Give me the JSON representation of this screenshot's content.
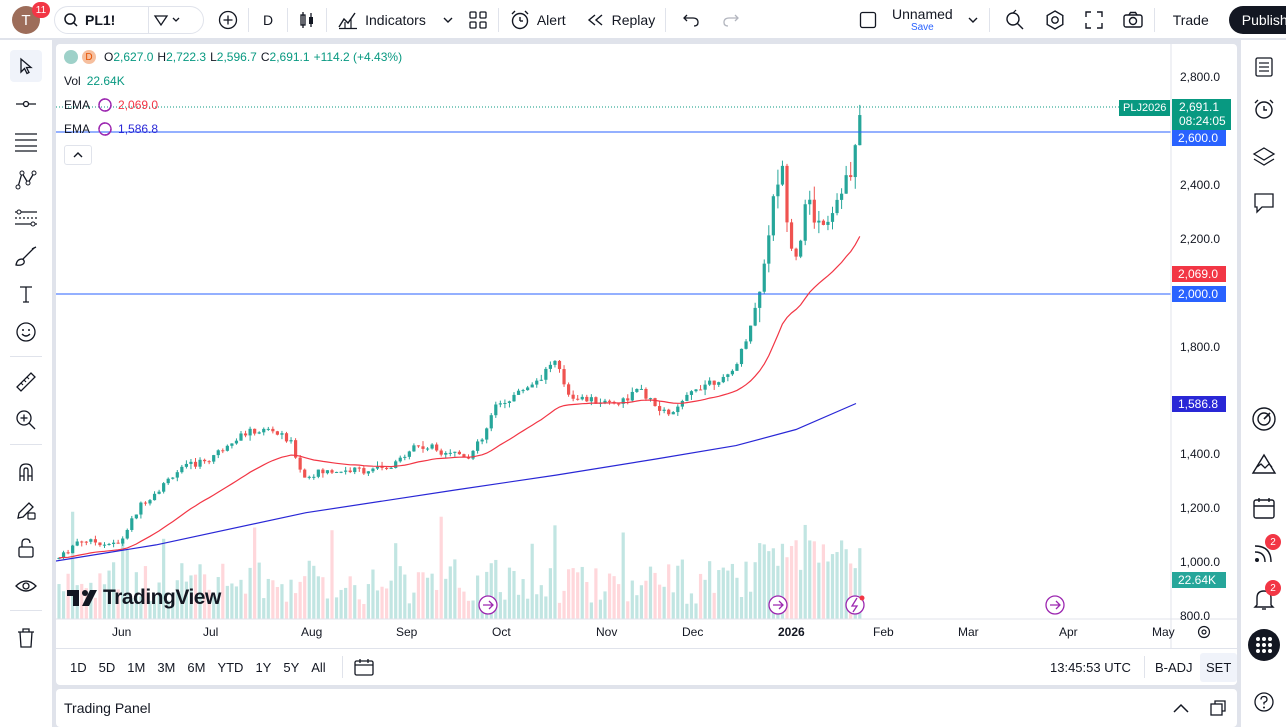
{
  "topbar": {
    "avatar_letter": "T",
    "notifications": "11",
    "symbol": "PL1!",
    "interval": "D",
    "indicators": "Indicators",
    "alert": "Alert",
    "replay": "Replay",
    "layout_name": "Unnamed",
    "layout_save": "Save",
    "trade": "Trade",
    "publish": "Publish"
  },
  "legend": {
    "dot_label": "D",
    "open_label": "O",
    "open": "2,627.0",
    "high_label": "H",
    "high": "2,722.3",
    "low_label": "L",
    "low": "2,596.7",
    "close_label": "C",
    "close": "2,691.1",
    "change": "+114.2 (+4.43%)",
    "vol_label": "Vol",
    "vol": "22.64K",
    "ema1_label": "EMA",
    "ema1": "2,069.0",
    "ema2_label": "EMA",
    "ema2": "1,586.8"
  },
  "price_axis": {
    "ticks": [
      "2,800.0",
      "2,400.0",
      "2,200.0",
      "1,800.0",
      "1,400.0",
      "1,200.0",
      "1,000.0",
      "800.0"
    ],
    "symbol_tag": "PLJ2026",
    "last_price": "2,691.1",
    "countdown": "08:24:05",
    "hline1": "2,600.0",
    "hline2": "2,000.0",
    "ema1": "2,069.0",
    "ema2": "1,586.8",
    "volume": "22.64K"
  },
  "time_axis": [
    "Jun",
    "Jul",
    "Aug",
    "Sep",
    "Oct",
    "Nov",
    "Dec",
    "2026",
    "Feb",
    "Mar",
    "Apr",
    "May"
  ],
  "logo_text": "TradingView",
  "bottom": {
    "ranges": [
      "1D",
      "5D",
      "1M",
      "3M",
      "6M",
      "YTD",
      "1Y",
      "5Y",
      "All"
    ],
    "clock": "13:45:53 UTC",
    "badj": "B-ADJ",
    "set": "SET"
  },
  "trading_panel": "Trading Panel",
  "right_badges": [
    "2",
    "2"
  ],
  "colors": {
    "up": "#26a69a",
    "down": "#ef5350",
    "ema_fast": "#f23645",
    "ema_slow": "#2927d6",
    "hline": "#2962ff",
    "last": "#089981"
  },
  "chart_data": {
    "type": "candlestick",
    "price_range": [
      800,
      2800
    ],
    "hlines": [
      2600,
      2000
    ],
    "last": 2691.1,
    "ema_fast_last": 2069.0,
    "ema_slow_last": 1586.8
  }
}
